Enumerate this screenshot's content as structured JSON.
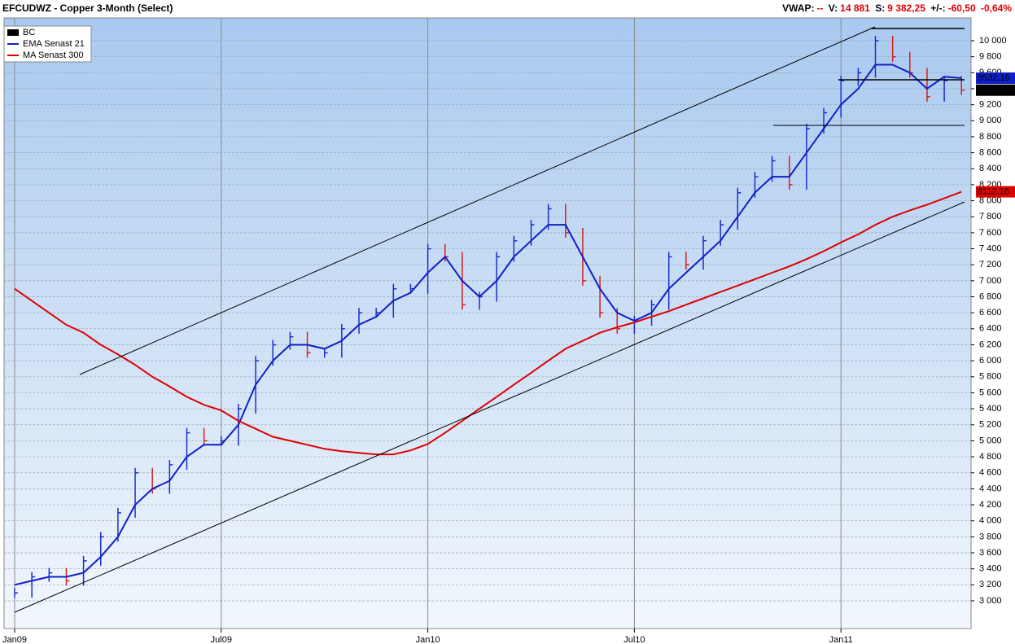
{
  "header": {
    "title": "EFCUDWZ - Copper 3-Month (Select)",
    "stats": [
      {
        "label": "VWAP:",
        "value": "--"
      },
      {
        "label": "V:",
        "value": "14 881"
      },
      {
        "label": "S:",
        "value": "9 382,25"
      },
      {
        "label": "+/-:",
        "value": "-60,50"
      },
      {
        "value": "-0,64%"
      }
    ]
  },
  "chart_data": {
    "type": "ohlc-line",
    "categories": [
      "Jan09",
      null,
      null,
      null,
      null,
      null,
      null,
      null,
      null,
      null,
      null,
      null,
      "Jul09",
      null,
      null,
      null,
      null,
      null,
      null,
      null,
      null,
      null,
      null,
      null,
      "Jan10",
      null,
      null,
      null,
      null,
      null,
      null,
      null,
      null,
      null,
      null,
      null,
      "Jul10",
      null,
      null,
      null,
      null,
      null,
      null,
      null,
      null,
      null,
      null,
      null,
      "Jan11",
      null,
      null,
      null,
      null,
      null,
      null,
      null
    ],
    "series": [
      {
        "name": "BC",
        "color": "#000000",
        "up_color": "#1a2ecc",
        "down_color": "#d42020",
        "values": [
          3100,
          3300,
          3350,
          3250,
          3500,
          3800,
          4100,
          4600,
          4400,
          4700,
          5100,
          5000,
          5000,
          5400,
          6000,
          6200,
          6300,
          6100,
          6100,
          6400,
          6600,
          6600,
          6900,
          6900,
          7400,
          7300,
          6700,
          6800,
          7300,
          7500,
          7700,
          7900,
          7600,
          7000,
          6600,
          6400,
          6500,
          6700,
          7300,
          7200,
          7500,
          7700,
          8100,
          8300,
          8500,
          8200,
          8900,
          9100,
          9500,
          9600,
          10000,
          9800,
          9600,
          9300,
          9500,
          9382.25
        ],
        "value_labels": [
          null,
          null,
          null,
          null,
          null,
          null,
          null,
          null,
          null,
          null,
          null,
          null,
          null,
          null,
          null,
          null,
          null,
          null,
          null,
          null,
          null,
          null,
          null,
          null,
          null,
          null,
          null,
          null,
          null,
          null,
          null,
          null,
          null,
          null,
          null,
          null,
          null,
          null,
          null,
          null,
          null,
          null,
          null,
          null,
          null,
          null,
          null,
          null,
          null,
          null,
          null,
          null,
          null,
          null,
          null,
          "9382,25"
        ]
      },
      {
        "name": "EMA  Senast 21",
        "color": "#1020c8",
        "values": [
          3200,
          3250,
          3300,
          3300,
          3350,
          3550,
          3800,
          4200,
          4400,
          4500,
          4800,
          4950,
          4950,
          5200,
          5700,
          6000,
          6200,
          6200,
          6150,
          6250,
          6450,
          6550,
          6750,
          6850,
          7100,
          7300,
          7000,
          6800,
          7000,
          7300,
          7500,
          7700,
          7700,
          7300,
          6900,
          6600,
          6500,
          6600,
          6900,
          7100,
          7300,
          7500,
          7800,
          8100,
          8300,
          8300,
          8600,
          8900,
          9200,
          9400,
          9700,
          9700,
          9600,
          9400,
          9550,
          9532.16
        ],
        "value_labels": [
          null,
          null,
          null,
          null,
          null,
          null,
          null,
          null,
          null,
          null,
          null,
          null,
          null,
          null,
          null,
          null,
          null,
          null,
          null,
          null,
          null,
          null,
          null,
          null,
          null,
          null,
          null,
          null,
          null,
          null,
          null,
          null,
          null,
          null,
          null,
          null,
          null,
          null,
          null,
          null,
          null,
          null,
          null,
          null,
          null,
          null,
          null,
          null,
          null,
          null,
          null,
          null,
          null,
          null,
          null,
          "9532,16"
        ]
      },
      {
        "name": "MA  Senast 300",
        "color": "#e00000",
        "values": [
          6900,
          6750,
          6600,
          6450,
          6350,
          6200,
          6080,
          5950,
          5800,
          5680,
          5550,
          5450,
          5380,
          5250,
          5150,
          5050,
          5000,
          4950,
          4900,
          4870,
          4850,
          4830,
          4830,
          4880,
          4960,
          5100,
          5250,
          5400,
          5550,
          5700,
          5850,
          6000,
          6150,
          6250,
          6350,
          6420,
          6480,
          6550,
          6620,
          6700,
          6780,
          6860,
          6940,
          7020,
          7100,
          7180,
          7270,
          7370,
          7480,
          7580,
          7700,
          7800,
          7880,
          7950,
          8030,
          8112.16
        ],
        "value_labels": [
          null,
          null,
          null,
          null,
          null,
          null,
          null,
          null,
          null,
          null,
          null,
          null,
          null,
          null,
          null,
          null,
          null,
          null,
          null,
          null,
          null,
          null,
          null,
          null,
          null,
          null,
          null,
          null,
          null,
          null,
          null,
          null,
          null,
          null,
          null,
          null,
          null,
          null,
          null,
          null,
          null,
          null,
          null,
          null,
          null,
          null,
          null,
          null,
          null,
          null,
          null,
          null,
          null,
          null,
          null,
          "8112,16"
        ]
      }
    ],
    "ylim": [
      2654,
      10285
    ],
    "yticks": [
      {
        "value": 3000,
        "label": "3 000"
      },
      {
        "value": 3200,
        "label": "3 200"
      },
      {
        "value": 3400,
        "label": "3 400"
      },
      {
        "value": 3600,
        "label": "3 600"
      },
      {
        "value": 3800,
        "label": "3 800"
      },
      {
        "value": 4000,
        "label": "4 000"
      },
      {
        "value": 4200,
        "label": "4 200"
      },
      {
        "value": 4400,
        "label": "4 400"
      },
      {
        "value": 4600,
        "label": "4 600"
      },
      {
        "value": 4800,
        "label": "4 800"
      },
      {
        "value": 5000,
        "label": "5 000"
      },
      {
        "value": 5200,
        "label": "5 200"
      },
      {
        "value": 5400,
        "label": "5 400"
      },
      {
        "value": 5600,
        "label": "5 600"
      },
      {
        "value": 5800,
        "label": "5 800"
      },
      {
        "value": 6000,
        "label": "6 000"
      },
      {
        "value": 6200,
        "label": "6 200"
      },
      {
        "value": 6400,
        "label": "6 400"
      },
      {
        "value": 6600,
        "label": "6 600"
      },
      {
        "value": 6800,
        "label": "6 800"
      },
      {
        "value": 7000,
        "label": "7 000"
      },
      {
        "value": 7200,
        "label": "7 200"
      },
      {
        "value": 7400,
        "label": "7 400"
      },
      {
        "value": 7600,
        "label": "7 600"
      },
      {
        "value": 7800,
        "label": "7 800"
      },
      {
        "value": 8000,
        "label": "8 000"
      },
      {
        "value": 8200,
        "label": "8 200"
      },
      {
        "value": 8400,
        "label": "8 400"
      },
      {
        "value": 8600,
        "label": "8 600"
      },
      {
        "value": 8800,
        "label": "8 800"
      },
      {
        "value": 9000,
        "label": "9 000"
      },
      {
        "value": 9200,
        "label": "9 200"
      },
      {
        "value": 9400,
        "label": "9 400"
      },
      {
        "value": 9600,
        "label": "9 600"
      },
      {
        "value": 9800,
        "label": "9 800"
      },
      {
        "value": 10000,
        "label": "10 000"
      }
    ],
    "grid": true,
    "legend": "top-left"
  }
}
